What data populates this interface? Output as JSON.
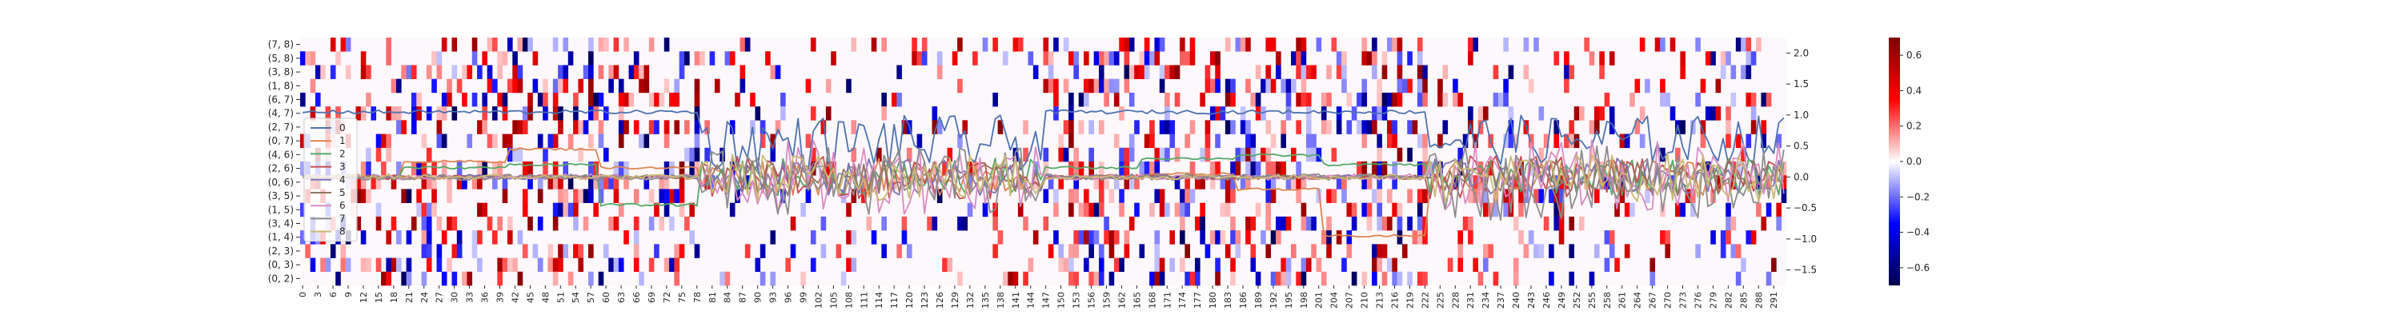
{
  "chart_data": [
    {
      "type": "heatmap",
      "y_labels": [
        "(7, 8)",
        "(5, 8)",
        "(3, 8)",
        "(1, 8)",
        "(6, 7)",
        "(4, 7)",
        "(2, 7)",
        "(0, 7)",
        "(4, 6)",
        "(2, 6)",
        "(0, 6)",
        "(3, 5)",
        "(1, 5)",
        "(3, 4)",
        "(1, 4)",
        "(2, 3)",
        "(0, 3)",
        "(0, 2)"
      ],
      "x_tick_labels": [
        "0",
        "3",
        "6",
        "9",
        "12",
        "15",
        "18",
        "21",
        "24",
        "27",
        "30",
        "33",
        "36",
        "39",
        "42",
        "45",
        "48",
        "51",
        "54",
        "57",
        "60",
        "63",
        "66",
        "69",
        "72",
        "75",
        "78",
        "81",
        "84",
        "87",
        "90",
        "93",
        "96",
        "99",
        "102",
        "105",
        "108",
        "111",
        "114",
        "117",
        "120",
        "123",
        "126",
        "129",
        "132",
        "135",
        "138",
        "141",
        "144",
        "147",
        "150",
        "153",
        "156",
        "159",
        "162",
        "165",
        "168",
        "171",
        "174",
        "177",
        "180",
        "183",
        "186",
        "189",
        "192",
        "195",
        "198",
        "201",
        "204",
        "207",
        "210",
        "213",
        "216",
        "219",
        "222",
        "225",
        "228",
        "231",
        "234",
        "237",
        "240",
        "243",
        "246",
        "249",
        "252",
        "255",
        "258",
        "261",
        "264",
        "267",
        "270",
        "273",
        "276",
        "279",
        "282",
        "285",
        "288",
        "291"
      ],
      "n_columns": 294,
      "colormap": "seismic",
      "colors": {
        "negative": "#00008b",
        "zero": "#ffffff",
        "positive": "#8b0000"
      },
      "value_range": [
        -0.7,
        0.7
      ],
      "colorbar_ticks": [
        "0.6",
        "0.4",
        "0.2",
        "0.0",
        "−0.2",
        "−0.4",
        "−0.6"
      ],
      "density_segments": [
        {
          "from": 0,
          "to": 78,
          "density": 0.35
        },
        {
          "from": 79,
          "to": 146,
          "density": 0.13
        },
        {
          "from": 147,
          "to": 222,
          "density": 0.35
        },
        {
          "from": 223,
          "to": 293,
          "density": 0.22
        }
      ]
    },
    {
      "type": "line",
      "x_range": [
        0,
        293
      ],
      "ylim": [
        -1.75,
        2.25
      ],
      "yticks": [
        "2.0",
        "1.5",
        "1.0",
        "0.5",
        "0.0",
        "−0.5",
        "−1.0",
        "−1.5"
      ],
      "legend": {
        "position": "left"
      },
      "series": [
        {
          "name": "0",
          "color": "#4c72b0",
          "segments": [
            [
              0,
              78,
              1.05
            ],
            [
              79,
              146,
              0.55
            ],
            [
              147,
              222,
              1.05
            ],
            [
              223,
              293,
              0.6
            ]
          ],
          "noise": [
            0.03,
            0.45,
            0.03,
            0.4
          ]
        },
        {
          "name": "1",
          "color": "#dd8452",
          "segments": [
            [
              0,
              19,
              0.0
            ],
            [
              20,
              40,
              0.25
            ],
            [
              41,
              58,
              0.45
            ],
            [
              59,
              78,
              0.15
            ],
            [
              79,
              146,
              0.0
            ],
            [
              147,
              165,
              0.0
            ],
            [
              166,
              184,
              0.05
            ],
            [
              185,
              201,
              -0.2
            ],
            [
              202,
              222,
              -0.95
            ],
            [
              223,
              293,
              0.0
            ]
          ],
          "noise": [
            0.02,
            0.3,
            0.02,
            0.3
          ]
        },
        {
          "name": "2",
          "color": "#55a868",
          "segments": [
            [
              0,
              19,
              0.0
            ],
            [
              20,
              40,
              0.15
            ],
            [
              41,
              58,
              0.2
            ],
            [
              59,
              78,
              -0.45
            ],
            [
              79,
              146,
              0.0
            ],
            [
              147,
              165,
              0.15
            ],
            [
              166,
              184,
              0.3
            ],
            [
              185,
              201,
              0.35
            ],
            [
              202,
              222,
              0.2
            ],
            [
              223,
              293,
              0.0
            ]
          ],
          "noise": [
            0.02,
            0.3,
            0.02,
            0.3
          ]
        },
        {
          "name": "3",
          "color": "#c44e52",
          "segments": [
            [
              0,
              78,
              0.0
            ],
            [
              79,
              146,
              0.0
            ],
            [
              147,
              222,
              0.0
            ],
            [
              223,
              293,
              0.0
            ]
          ],
          "noise": [
            0.04,
            0.35,
            0.04,
            0.35
          ]
        },
        {
          "name": "4",
          "color": "#8172b3",
          "segments": [
            [
              0,
              78,
              0.0
            ],
            [
              79,
              146,
              0.0
            ],
            [
              147,
              222,
              0.0
            ],
            [
              223,
              293,
              0.0
            ]
          ],
          "noise": [
            0.04,
            0.3,
            0.04,
            0.3
          ]
        },
        {
          "name": "5",
          "color": "#937860",
          "segments": [
            [
              0,
              78,
              0.0
            ],
            [
              79,
              146,
              0.0
            ],
            [
              147,
              222,
              0.0
            ],
            [
              223,
              293,
              0.0
            ]
          ],
          "noise": [
            0.03,
            0.3,
            0.03,
            0.3
          ]
        },
        {
          "name": "6",
          "color": "#da8bc3",
          "segments": [
            [
              0,
              78,
              0.0
            ],
            [
              79,
              146,
              0.0
            ],
            [
              147,
              222,
              0.0
            ],
            [
              223,
              293,
              0.0
            ]
          ],
          "noise": [
            0.05,
            0.6,
            0.05,
            0.6
          ]
        },
        {
          "name": "7",
          "color": "#8c8c8c",
          "segments": [
            [
              0,
              78,
              0.0
            ],
            [
              79,
              146,
              -0.05
            ],
            [
              147,
              222,
              0.0
            ],
            [
              223,
              293,
              -0.1
            ]
          ],
          "noise": [
            0.05,
            0.55,
            0.05,
            0.6
          ]
        },
        {
          "name": "8",
          "color": "#ccb974",
          "segments": [
            [
              0,
              78,
              0.0
            ],
            [
              79,
              146,
              0.0
            ],
            [
              147,
              222,
              0.0
            ],
            [
              223,
              293,
              0.0
            ]
          ],
          "noise": [
            0.04,
            0.4,
            0.04,
            0.4
          ]
        }
      ]
    }
  ]
}
